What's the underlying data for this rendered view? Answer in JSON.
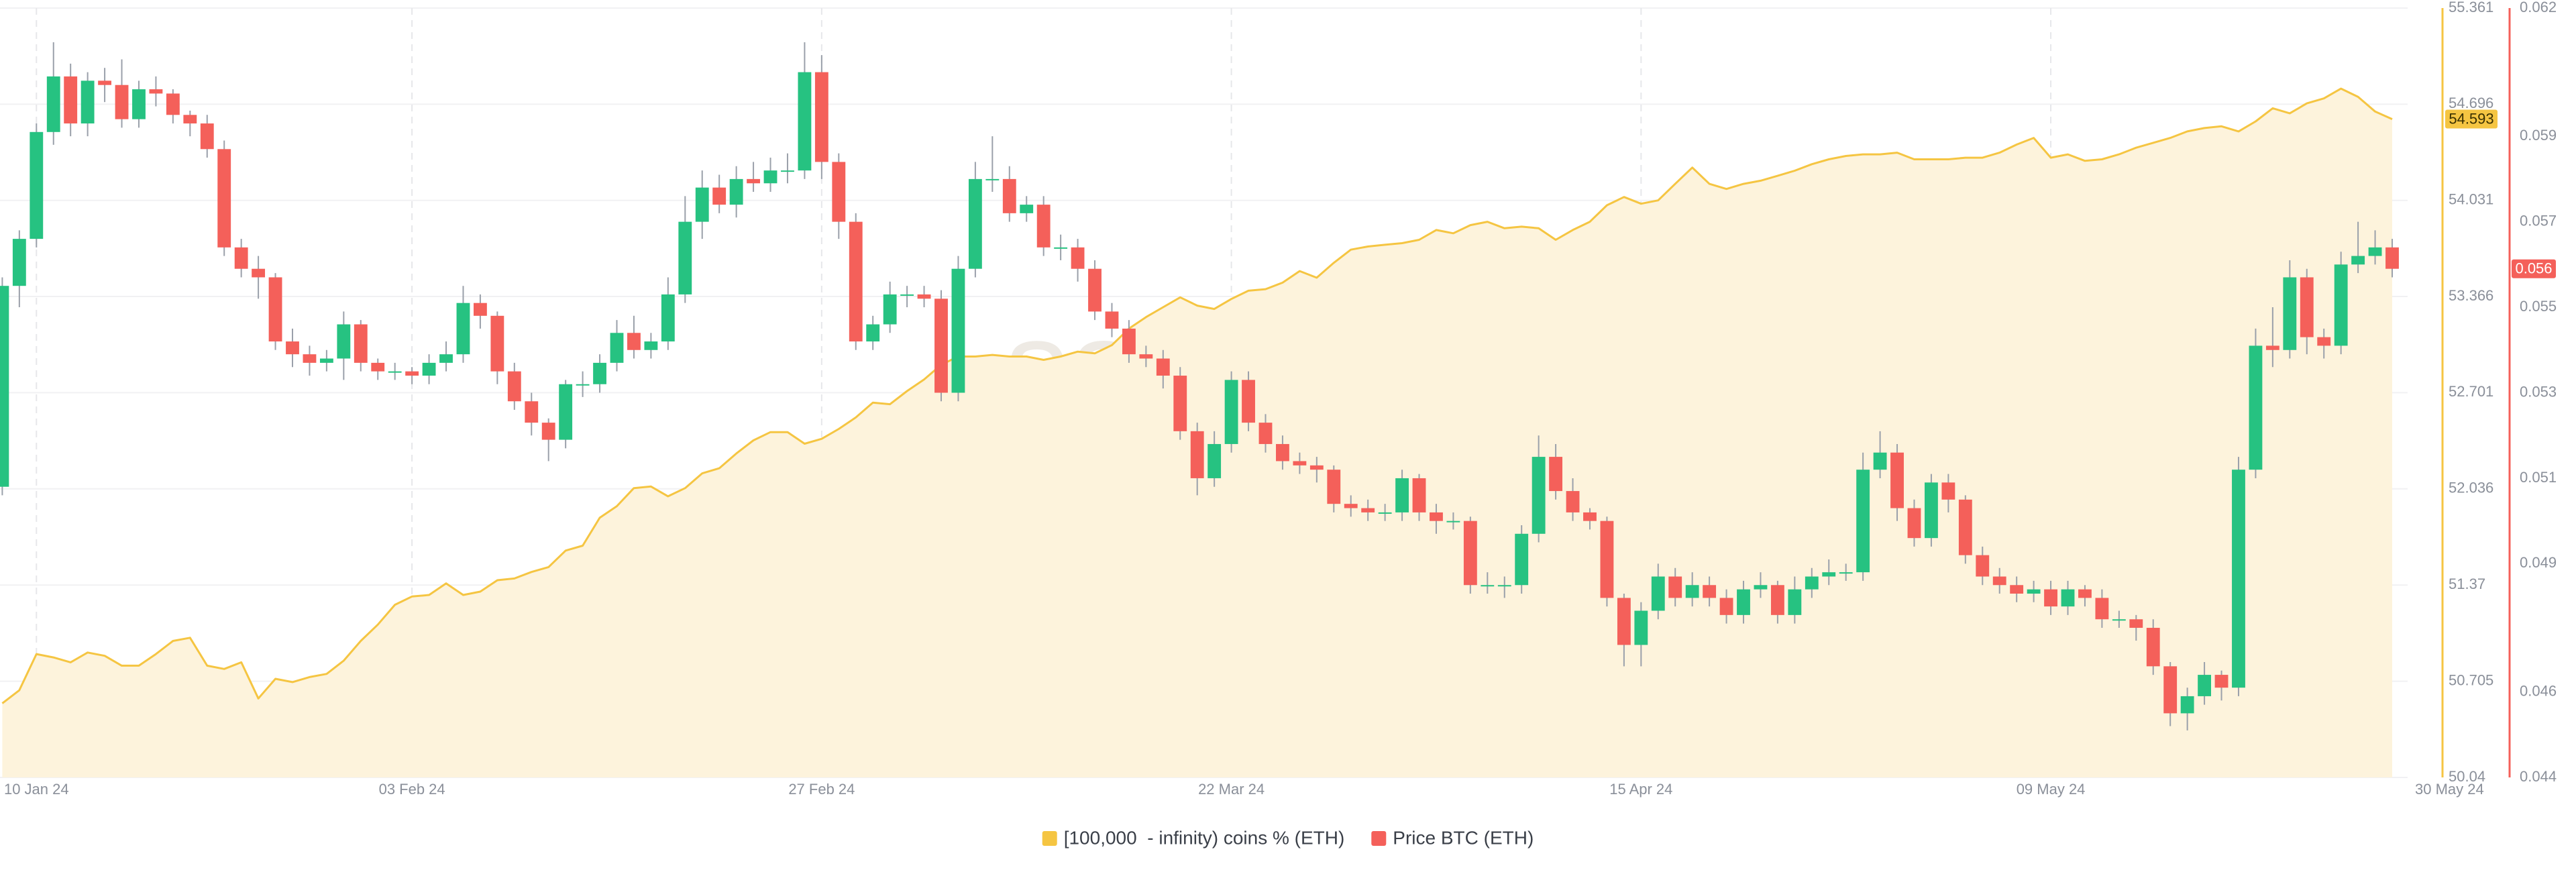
{
  "chart_data": {
    "type": "combo",
    "watermark": "santiment",
    "categories": [
      null,
      null,
      "10 Jan 24",
      null,
      null,
      null,
      null,
      null,
      null,
      null,
      null,
      null,
      null,
      null,
      null,
      null,
      null,
      null,
      null,
      null,
      null,
      null,
      null,
      null,
      "03 Feb 24",
      null,
      null,
      null,
      null,
      null,
      null,
      null,
      null,
      null,
      null,
      null,
      null,
      null,
      null,
      null,
      null,
      null,
      null,
      null,
      null,
      null,
      null,
      null,
      "27 Feb 24",
      null,
      null,
      null,
      null,
      null,
      null,
      null,
      null,
      null,
      null,
      null,
      null,
      null,
      null,
      null,
      null,
      null,
      null,
      null,
      null,
      null,
      null,
      null,
      "22 Mar 24",
      null,
      null,
      null,
      null,
      null,
      null,
      null,
      null,
      null,
      null,
      null,
      null,
      null,
      null,
      null,
      null,
      null,
      null,
      null,
      null,
      null,
      null,
      null,
      "15 Apr 24",
      null,
      null,
      null,
      null,
      null,
      null,
      null,
      null,
      null,
      null,
      null,
      null,
      null,
      null,
      null,
      null,
      null,
      null,
      null,
      null,
      null,
      null,
      null,
      "09 May 24",
      null,
      null,
      null,
      null,
      null,
      null,
      null,
      null,
      null,
      null,
      null,
      null,
      null,
      null,
      null,
      null,
      null,
      null,
      null,
      "30 May 24"
    ],
    "ylim": [
      50.04,
      55.361
    ],
    "yticks": [
      50.04,
      50.705,
      51.37,
      52.036,
      52.701,
      53.366,
      54.031,
      54.696,
      55.361
    ],
    "y2lim": [
      0.044,
      0.062
    ],
    "y2ticks": [
      0.044,
      0.046,
      0.049,
      0.051,
      0.053,
      0.055,
      0.057,
      0.059,
      0.062
    ],
    "grid": true,
    "legend": "bottom",
    "series": [
      {
        "name": "[100,000  - infinity) coins % (ETH)",
        "type": "area",
        "color": "#f5c542",
        "fill": "#fdf3dc",
        "last_label": "54.593",
        "values": [
          50.552,
          50.643,
          50.893,
          50.87,
          50.836,
          50.904,
          50.881,
          50.813,
          50.813,
          50.893,
          50.984,
          51.006,
          50.813,
          50.79,
          50.836,
          50.586,
          50.722,
          50.699,
          50.734,
          50.756,
          50.847,
          50.984,
          51.097,
          51.234,
          51.291,
          51.302,
          51.382,
          51.302,
          51.325,
          51.404,
          51.416,
          51.461,
          51.495,
          51.609,
          51.643,
          51.836,
          51.916,
          52.041,
          52.052,
          51.984,
          52.041,
          52.143,
          52.178,
          52.28,
          52.371,
          52.428,
          52.428,
          52.348,
          52.382,
          52.45,
          52.53,
          52.632,
          52.621,
          52.712,
          52.792,
          52.894,
          52.951,
          52.951,
          52.962,
          52.951,
          52.951,
          52.928,
          52.951,
          52.985,
          52.973,
          53.03,
          53.144,
          53.224,
          53.292,
          53.36,
          53.303,
          53.28,
          53.349,
          53.406,
          53.417,
          53.462,
          53.542,
          53.496,
          53.599,
          53.69,
          53.712,
          53.724,
          53.735,
          53.758,
          53.826,
          53.803,
          53.86,
          53.883,
          53.838,
          53.849,
          53.838,
          53.758,
          53.826,
          53.883,
          53.997,
          54.054,
          54.008,
          54.031,
          54.145,
          54.258,
          54.145,
          54.11,
          54.145,
          54.167,
          54.201,
          54.236,
          54.281,
          54.315,
          54.338,
          54.349,
          54.349,
          54.361,
          54.315,
          54.315,
          54.315,
          54.326,
          54.326,
          54.361,
          54.417,
          54.463,
          54.326,
          54.349,
          54.304,
          54.315,
          54.349,
          54.395,
          54.429,
          54.463,
          54.508,
          54.531,
          54.543,
          54.508,
          54.577,
          54.668,
          54.633,
          54.702,
          54.736,
          54.804,
          54.747,
          54.645,
          54.593
        ]
      },
      {
        "name": "Price BTC (ETH)",
        "type": "candlestick",
        "axis": "y2",
        "color": "#f4605a",
        "up_color": "#26c281",
        "down_color": "#f4605a",
        "last_label": "0.056",
        "open": [
          0.0508,
          0.0555,
          0.0566,
          0.0591,
          0.0604,
          0.0593,
          0.0603,
          0.0602,
          0.0594,
          0.0601,
          0.06,
          0.0595,
          0.0593,
          0.0587,
          0.0564,
          0.0559,
          0.0557,
          0.0542,
          0.0539,
          0.0537,
          0.0538,
          0.0546,
          0.0537,
          0.0535,
          0.0535,
          0.0534,
          0.0537,
          0.0539,
          0.0551,
          0.0548,
          0.0535,
          0.0528,
          0.0523,
          0.0519,
          0.0532,
          0.0532,
          0.0537,
          0.0544,
          0.054,
          0.0542,
          0.0553,
          0.057,
          0.0578,
          0.0574,
          0.058,
          0.0579,
          0.0582,
          0.0582,
          0.0605,
          0.0584,
          0.057,
          0.0542,
          0.0546,
          0.0553,
          0.0553,
          0.0552,
          0.053,
          0.0559,
          0.058,
          0.058,
          0.0572,
          0.0574,
          0.0564,
          0.0564,
          0.0559,
          0.0549,
          0.0545,
          0.0539,
          0.0538,
          0.0534,
          0.0521,
          0.051,
          0.0518,
          0.0533,
          0.0523,
          0.0518,
          0.0514,
          0.0513,
          0.0512,
          0.0504,
          0.0503,
          0.0502,
          0.0502,
          0.051,
          0.0502,
          0.05,
          0.05,
          0.0485,
          0.0485,
          0.0485,
          0.0497,
          0.0515,
          0.0507,
          0.0502,
          0.05,
          0.0482,
          0.0471,
          0.0479,
          0.0487,
          0.0482,
          0.0485,
          0.0482,
          0.0478,
          0.0484,
          0.0485,
          0.0478,
          0.0484,
          0.0487,
          0.0488,
          0.0488,
          0.0512,
          0.0516,
          0.0503,
          0.0496,
          0.0509,
          0.0505,
          0.0492,
          0.0487,
          0.0485,
          0.0483,
          0.0484,
          0.048,
          0.0484,
          0.0482,
          0.0477,
          0.0477,
          0.0475,
          0.0466,
          0.0455,
          0.0459,
          0.0464,
          0.0461,
          0.0512,
          0.0541,
          0.054,
          0.0557,
          0.0543,
          0.0541,
          0.056,
          0.0562,
          0.0564
        ],
        "high": [
          0.0557,
          0.0568,
          0.0593,
          0.0612,
          0.0607,
          0.0605,
          0.0606,
          0.0608,
          0.0603,
          0.0604,
          0.0601,
          0.0596,
          0.0595,
          0.0589,
          0.0566,
          0.0562,
          0.0558,
          0.0545,
          0.0541,
          0.054,
          0.0549,
          0.0547,
          0.0538,
          0.0537,
          0.0536,
          0.0539,
          0.0542,
          0.0555,
          0.0553,
          0.0549,
          0.0537,
          0.053,
          0.0524,
          0.0533,
          0.0535,
          0.0539,
          0.0547,
          0.0548,
          0.0544,
          0.0557,
          0.0576,
          0.0582,
          0.0581,
          0.0583,
          0.0584,
          0.0585,
          0.0586,
          0.0612,
          0.0609,
          0.0586,
          0.0572,
          0.0548,
          0.0556,
          0.0555,
          0.0555,
          0.0554,
          0.0562,
          0.0584,
          0.059,
          0.0583,
          0.0576,
          0.0576,
          0.0567,
          0.0566,
          0.0561,
          0.0551,
          0.0547,
          0.0541,
          0.054,
          0.0536,
          0.0523,
          0.0521,
          0.0535,
          0.0535,
          0.0525,
          0.052,
          0.0516,
          0.0515,
          0.0513,
          0.0506,
          0.0505,
          0.0504,
          0.0512,
          0.0511,
          0.0504,
          0.0502,
          0.0501,
          0.0488,
          0.0487,
          0.0499,
          0.052,
          0.0518,
          0.051,
          0.0503,
          0.0501,
          0.0483,
          0.0481,
          0.049,
          0.0489,
          0.0488,
          0.0487,
          0.0484,
          0.0486,
          0.0488,
          0.0486,
          0.0487,
          0.0489,
          0.0491,
          0.049,
          0.0516,
          0.0521,
          0.0518,
          0.0505,
          0.0511,
          0.0511,
          0.0506,
          0.0494,
          0.0489,
          0.0487,
          0.0486,
          0.0486,
          0.0486,
          0.0485,
          0.0484,
          0.0479,
          0.0478,
          0.0477,
          0.0467,
          0.0461,
          0.0467,
          0.0465,
          0.0515,
          0.0545,
          0.055,
          0.0561,
          0.0559,
          0.0545,
          0.0563,
          0.057,
          0.0568,
          0.0566
        ],
        "low": [
          0.0506,
          0.055,
          0.0564,
          0.0588,
          0.059,
          0.059,
          0.0598,
          0.0592,
          0.0592,
          0.0597,
          0.0593,
          0.059,
          0.0585,
          0.0562,
          0.0557,
          0.0552,
          0.054,
          0.0536,
          0.0534,
          0.0535,
          0.0533,
          0.0535,
          0.0533,
          0.0533,
          0.0532,
          0.0532,
          0.0535,
          0.0537,
          0.0545,
          0.0532,
          0.0526,
          0.052,
          0.0514,
          0.0517,
          0.0529,
          0.053,
          0.0535,
          0.0538,
          0.0538,
          0.054,
          0.0551,
          0.0566,
          0.0572,
          0.0571,
          0.0577,
          0.0577,
          0.0579,
          0.058,
          0.058,
          0.0566,
          0.054,
          0.054,
          0.0544,
          0.055,
          0.055,
          0.0528,
          0.0528,
          0.0557,
          0.0577,
          0.057,
          0.057,
          0.0562,
          0.0561,
          0.0556,
          0.0547,
          0.0543,
          0.0537,
          0.0536,
          0.0531,
          0.0519,
          0.0506,
          0.0508,
          0.0516,
          0.0521,
          0.0516,
          0.0512,
          0.0511,
          0.0509,
          0.0502,
          0.0501,
          0.05,
          0.05,
          0.05,
          0.05,
          0.0497,
          0.0498,
          0.0483,
          0.0483,
          0.0482,
          0.0483,
          0.0495,
          0.0505,
          0.05,
          0.0498,
          0.048,
          0.0466,
          0.0466,
          0.0477,
          0.048,
          0.048,
          0.048,
          0.0476,
          0.0476,
          0.0482,
          0.0476,
          0.0476,
          0.0482,
          0.0485,
          0.0486,
          0.0486,
          0.051,
          0.05,
          0.0494,
          0.0494,
          0.0502,
          0.049,
          0.0485,
          0.0483,
          0.0481,
          0.0481,
          0.0478,
          0.0478,
          0.048,
          0.0475,
          0.0475,
          0.0472,
          0.0464,
          0.0452,
          0.0451,
          0.0457,
          0.0458,
          0.0459,
          0.051,
          0.0536,
          0.0538,
          0.0539,
          0.0538,
          0.0539,
          0.0558,
          0.056,
          0.0557
        ],
        "close": [
          0.0555,
          0.0566,
          0.0591,
          0.0604,
          0.0593,
          0.0603,
          0.0602,
          0.0594,
          0.0601,
          0.06,
          0.0595,
          0.0593,
          0.0587,
          0.0564,
          0.0559,
          0.0557,
          0.0542,
          0.0539,
          0.0537,
          0.0538,
          0.0546,
          0.0537,
          0.0535,
          0.0535,
          0.0534,
          0.0537,
          0.0539,
          0.0551,
          0.0548,
          0.0535,
          0.0528,
          0.0523,
          0.0519,
          0.0532,
          0.0532,
          0.0537,
          0.0544,
          0.054,
          0.0542,
          0.0553,
          0.057,
          0.0578,
          0.0574,
          0.058,
          0.0579,
          0.0582,
          0.0582,
          0.0605,
          0.0584,
          0.057,
          0.0542,
          0.0546,
          0.0553,
          0.0553,
          0.0552,
          0.053,
          0.0559,
          0.058,
          0.058,
          0.0572,
          0.0574,
          0.0564,
          0.0564,
          0.0559,
          0.0549,
          0.0545,
          0.0539,
          0.0538,
          0.0534,
          0.0521,
          0.051,
          0.0518,
          0.0533,
          0.0523,
          0.0518,
          0.0514,
          0.0513,
          0.0512,
          0.0504,
          0.0503,
          0.0502,
          0.0502,
          0.051,
          0.0502,
          0.05,
          0.05,
          0.0485,
          0.0485,
          0.0485,
          0.0497,
          0.0515,
          0.0507,
          0.0502,
          0.05,
          0.0482,
          0.0471,
          0.0479,
          0.0487,
          0.0482,
          0.0485,
          0.0482,
          0.0478,
          0.0484,
          0.0485,
          0.0478,
          0.0484,
          0.0487,
          0.0488,
          0.0488,
          0.0512,
          0.0516,
          0.0503,
          0.0496,
          0.0509,
          0.0505,
          0.0492,
          0.0487,
          0.0485,
          0.0483,
          0.0484,
          0.048,
          0.0484,
          0.0482,
          0.0477,
          0.0477,
          0.0475,
          0.0466,
          0.0455,
          0.0459,
          0.0464,
          0.0461,
          0.0512,
          0.0541,
          0.054,
          0.0557,
          0.0543,
          0.0541,
          0.056,
          0.0562,
          0.0564,
          0.0559
        ]
      }
    ]
  }
}
